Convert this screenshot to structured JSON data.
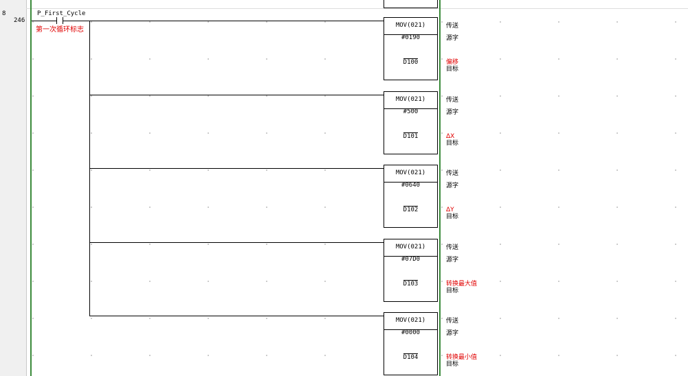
{
  "rung": {
    "number": "8",
    "step": "246"
  },
  "contact": {
    "name": "P_First_Cycle",
    "comment": "第一次循环标志"
  },
  "instructions": [
    {
      "op": "MOV(021)",
      "source": "#0190",
      "dest": "D100",
      "op_comment": "传送",
      "src_comment": "源字",
      "dest_comment": "偏移",
      "dest_role": "目标"
    },
    {
      "op": "MOV(021)",
      "source": "#500",
      "dest": "D101",
      "op_comment": "传送",
      "src_comment": "源字",
      "dest_comment": "ΔX",
      "dest_role": "目标"
    },
    {
      "op": "MOV(021)",
      "source": "#0640",
      "dest": "D102",
      "op_comment": "传送",
      "src_comment": "源字",
      "dest_comment": "ΔY",
      "dest_role": "目标"
    },
    {
      "op": "MOV(021)",
      "source": "#07D0",
      "dest": "D103",
      "op_comment": "传送",
      "src_comment": "源字",
      "dest_comment": "转换最大值",
      "dest_role": "目标"
    },
    {
      "op": "MOV(021)",
      "source": "#0000",
      "dest": "D104",
      "op_comment": "传送",
      "src_comment": "源字",
      "dest_comment": "转换最小值",
      "dest_role": "目标"
    }
  ],
  "colors": {
    "rail": "#3a8a3a",
    "comment": "#e00000"
  }
}
